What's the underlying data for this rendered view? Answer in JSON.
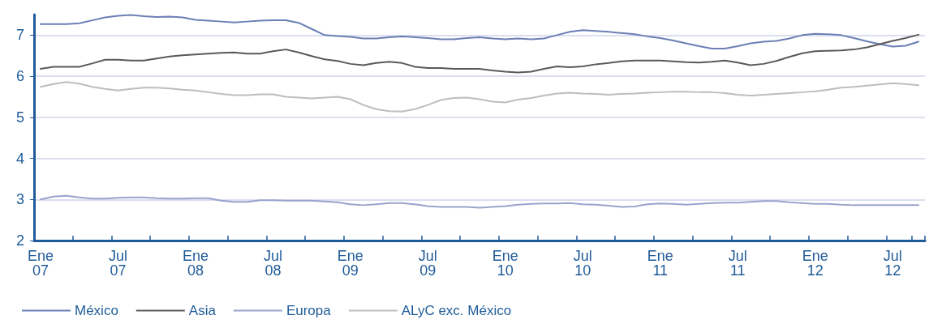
{
  "chart_data": {
    "type": "line",
    "categories": [
      "Ene 07",
      null,
      null,
      null,
      null,
      null,
      "Jul 07",
      null,
      null,
      null,
      null,
      null,
      "Ene 08",
      null,
      null,
      null,
      null,
      null,
      "Jul 08",
      null,
      null,
      null,
      null,
      null,
      "Ene 09",
      null,
      null,
      null,
      null,
      null,
      "Jul 09",
      null,
      null,
      null,
      null,
      null,
      "Ene 10",
      null,
      null,
      null,
      null,
      null,
      "Jul 10",
      null,
      null,
      null,
      null,
      null,
      "Ene 11",
      null,
      null,
      null,
      null,
      null,
      "Jul 11",
      null,
      null,
      null,
      null,
      null,
      "Ene 12",
      null,
      null,
      null,
      null,
      null,
      "Jul 12",
      null,
      null
    ],
    "series": [
      {
        "name": "México",
        "color": "#6b7fb5",
        "values": [
          7.27,
          7.27,
          7.27,
          7.29,
          7.36,
          7.43,
          7.47,
          7.49,
          7.46,
          7.44,
          7.45,
          7.43,
          7.37,
          7.35,
          7.33,
          7.31,
          7.33,
          7.35,
          7.36,
          7.36,
          7.3,
          7.15,
          7.0,
          6.98,
          6.96,
          6.92,
          6.92,
          6.95,
          6.97,
          6.95,
          6.93,
          6.9,
          6.9,
          6.93,
          6.95,
          6.92,
          6.9,
          6.92,
          6.9,
          6.92,
          7.0,
          7.08,
          7.12,
          7.1,
          7.08,
          7.05,
          7.02,
          6.97,
          6.93,
          6.87,
          6.8,
          6.73,
          6.67,
          6.67,
          6.73,
          6.8,
          6.84,
          6.86,
          6.92,
          7.0,
          7.03,
          7.02,
          7.0,
          6.93,
          6.85,
          6.78,
          6.72,
          6.74,
          6.84
        ]
      },
      {
        "name": "Asia",
        "color": "#5a5a5a",
        "values": [
          6.18,
          6.23,
          6.23,
          6.23,
          6.31,
          6.4,
          6.4,
          6.38,
          6.38,
          6.43,
          6.48,
          6.51,
          6.53,
          6.55,
          6.57,
          6.58,
          6.55,
          6.55,
          6.61,
          6.65,
          6.58,
          6.49,
          6.41,
          6.37,
          6.3,
          6.27,
          6.32,
          6.35,
          6.32,
          6.23,
          6.2,
          6.2,
          6.18,
          6.18,
          6.18,
          6.14,
          6.11,
          6.09,
          6.11,
          6.18,
          6.24,
          6.22,
          6.24,
          6.29,
          6.32,
          6.36,
          6.38,
          6.38,
          6.38,
          6.36,
          6.34,
          6.33,
          6.35,
          6.38,
          6.33,
          6.27,
          6.3,
          6.37,
          6.47,
          6.56,
          6.61,
          6.62,
          6.63,
          6.65,
          6.7,
          6.78,
          6.86,
          6.93,
          7.01
        ]
      },
      {
        "name": "Europa",
        "color": "#9aa3cc",
        "values": [
          3.0,
          3.07,
          3.09,
          3.05,
          3.02,
          3.02,
          3.04,
          3.05,
          3.05,
          3.03,
          3.02,
          3.02,
          3.03,
          3.03,
          2.97,
          2.94,
          2.94,
          2.98,
          2.98,
          2.97,
          2.97,
          2.97,
          2.95,
          2.93,
          2.88,
          2.86,
          2.88,
          2.91,
          2.91,
          2.88,
          2.84,
          2.82,
          2.82,
          2.82,
          2.8,
          2.82,
          2.84,
          2.87,
          2.89,
          2.9,
          2.9,
          2.91,
          2.88,
          2.87,
          2.85,
          2.82,
          2.83,
          2.88,
          2.9,
          2.89,
          2.87,
          2.89,
          2.91,
          2.92,
          2.92,
          2.94,
          2.96,
          2.96,
          2.93,
          2.91,
          2.89,
          2.89,
          2.87,
          2.86,
          2.86,
          2.86,
          2.86,
          2.86,
          2.86
        ]
      },
      {
        "name": "ALyC exc. México",
        "color": "#c0bcbc",
        "values": [
          5.74,
          5.81,
          5.86,
          5.82,
          5.74,
          5.69,
          5.65,
          5.69,
          5.72,
          5.72,
          5.7,
          5.67,
          5.65,
          5.61,
          5.57,
          5.54,
          5.54,
          5.56,
          5.56,
          5.5,
          5.48,
          5.46,
          5.48,
          5.5,
          5.44,
          5.3,
          5.2,
          5.15,
          5.14,
          5.2,
          5.3,
          5.42,
          5.47,
          5.48,
          5.44,
          5.38,
          5.36,
          5.43,
          5.47,
          5.53,
          5.58,
          5.6,
          5.58,
          5.57,
          5.55,
          5.57,
          5.58,
          5.6,
          5.61,
          5.62,
          5.62,
          5.61,
          5.61,
          5.59,
          5.55,
          5.53,
          5.55,
          5.57,
          5.59,
          5.61,
          5.63,
          5.67,
          5.72,
          5.74,
          5.77,
          5.8,
          5.83,
          5.81,
          5.78
        ]
      }
    ],
    "ylim": [
      2,
      7.5
    ],
    "yticks": [
      2,
      3,
      4,
      5,
      6,
      7
    ],
    "grid": "y",
    "legend": "bottom left",
    "marker": "none",
    "line_style": "solid"
  }
}
